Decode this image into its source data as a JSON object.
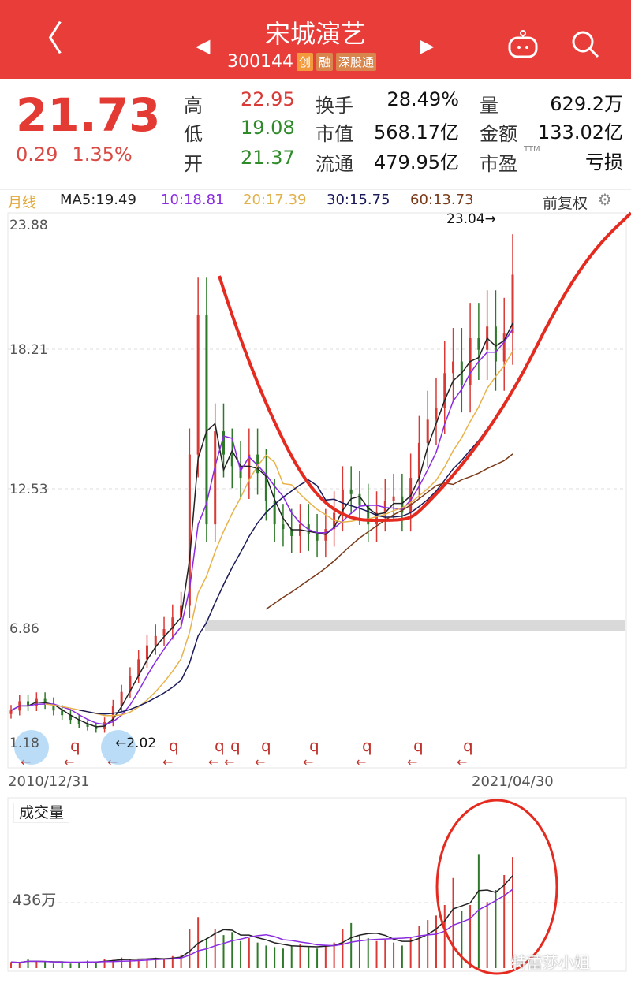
{
  "header": {
    "back": "〈",
    "title": "宋城演艺",
    "code": "300144",
    "tags": [
      "创",
      "融",
      "深股通"
    ],
    "prev": "◀",
    "next": "▶",
    "robot_icon": "robot-icon",
    "search_icon": "search-icon"
  },
  "quote": {
    "price": "21.73",
    "change": "0.29",
    "change_pct": "1.35%",
    "high_label": "高",
    "high": "22.95",
    "low_label": "低",
    "low": "19.08",
    "open_label": "开",
    "open": "21.37",
    "turnover_label": "换手",
    "turnover": "28.49%",
    "mktcap_label": "市值",
    "mktcap": "568.17亿",
    "float_label": "流通",
    "float": "479.95亿",
    "vol_label": "量",
    "vol": "629.2万",
    "amount_label": "金额",
    "amount": "133.02亿",
    "pe_label": "市盈",
    "pe_sup": "TTM",
    "pe": "亏损"
  },
  "ma_bar": {
    "period": "月线",
    "ma5": "MA5:19.49",
    "ma10": "10:18.81",
    "ma20": "20:17.39",
    "ma30": "30:15.75",
    "ma60": "60:13.73",
    "adjust": "前复权"
  },
  "colors": {
    "up": "#d93a35",
    "down": "#2f7a2a",
    "ma5": "#222222",
    "ma10": "#8a2be2",
    "ma20": "#e8b24a",
    "ma30": "#1a1a5a",
    "ma60": "#7a3a1a",
    "brand": "#e93d3a"
  },
  "price_axis": [
    "23.88",
    "18.21",
    "12.53",
    "6.86",
    "1.18"
  ],
  "date_start": "2010/12/31",
  "date_end": "2021/04/30",
  "high_mark": "23.04→",
  "low_mark": "←2.02",
  "marker_q": "q",
  "marker_arrow": "←",
  "volume": {
    "label": "成交量",
    "axis": "436万"
  },
  "watermark": "特蕾莎小姐",
  "chart_data": {
    "type": "candlestick",
    "ylim": [
      1.18,
      23.88
    ],
    "closes": [
      3.0,
      3.4,
      3.2,
      3.5,
      3.3,
      3.0,
      2.8,
      2.6,
      2.4,
      2.3,
      2.2,
      2.5,
      3.2,
      3.8,
      4.5,
      5.2,
      5.8,
      6.2,
      6.5,
      7.0,
      7.5,
      14,
      20,
      11,
      15,
      14,
      13.5,
      13,
      14,
      13.2,
      12,
      11,
      10.8,
      10.5,
      11,
      10.6,
      10.3,
      10.8,
      11.5,
      12.5,
      12.3,
      11.8,
      11,
      11.5,
      12,
      12.2,
      11.5,
      13,
      14.5,
      15.5,
      16,
      17.5,
      18,
      17,
      19,
      18.5,
      19.5,
      18,
      19.2,
      21.73
    ],
    "volumes_wan": [
      40,
      35,
      60,
      45,
      40,
      30,
      35,
      30,
      40,
      50,
      45,
      60,
      55,
      70,
      60,
      55,
      65,
      70,
      60,
      80,
      90,
      260,
      340,
      200,
      260,
      220,
      240,
      180,
      200,
      170,
      150,
      140,
      130,
      150,
      160,
      140,
      130,
      150,
      170,
      260,
      300,
      220,
      200,
      180,
      190,
      170,
      150,
      200,
      280,
      320,
      350,
      420,
      600,
      380,
      420,
      760,
      440,
      520,
      620,
      740
    ]
  }
}
